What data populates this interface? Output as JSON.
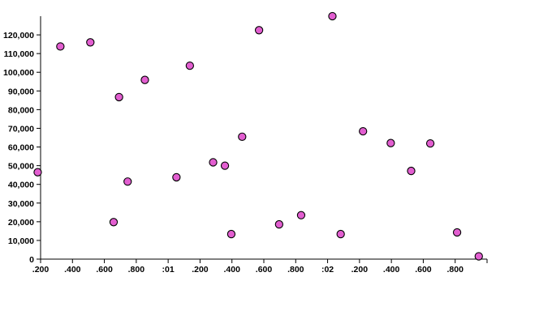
{
  "chart_data": {
    "type": "scatter",
    "title": "",
    "xlabel": "",
    "ylabel": "",
    "x_ticks": [
      ".200",
      ".400",
      ".600",
      ".800",
      ":01",
      ".200",
      ".400",
      ".600",
      ".800",
      ":02",
      ".200",
      ".400",
      ".600",
      ".800",
      ""
    ],
    "y_ticks": [
      "0",
      "10,000",
      "20,000",
      "30,000",
      "40,000",
      "50,000",
      "60,000",
      "70,000",
      "80,000",
      "90,000",
      "100,000",
      "110,000",
      "120,000"
    ],
    "xlim": [
      0,
      14
    ],
    "ylim": [
      0,
      130000
    ],
    "grid": false,
    "point_color": "#e25ed0",
    "points": [
      {
        "x": -0.09,
        "y": 46500
      },
      {
        "x": 0.62,
        "y": 113800
      },
      {
        "x": 1.56,
        "y": 116000
      },
      {
        "x": 2.29,
        "y": 19800
      },
      {
        "x": 2.46,
        "y": 86700
      },
      {
        "x": 2.73,
        "y": 41500
      },
      {
        "x": 3.27,
        "y": 95900
      },
      {
        "x": 4.26,
        "y": 43800
      },
      {
        "x": 4.68,
        "y": 103500
      },
      {
        "x": 5.41,
        "y": 51800
      },
      {
        "x": 5.78,
        "y": 50000
      },
      {
        "x": 5.98,
        "y": 13400
      },
      {
        "x": 6.32,
        "y": 65500
      },
      {
        "x": 6.85,
        "y": 122500
      },
      {
        "x": 7.48,
        "y": 18600
      },
      {
        "x": 8.17,
        "y": 23500
      },
      {
        "x": 9.15,
        "y": 130000
      },
      {
        "x": 9.41,
        "y": 13400
      },
      {
        "x": 10.11,
        "y": 68400
      },
      {
        "x": 10.98,
        "y": 62100
      },
      {
        "x": 11.62,
        "y": 47200
      },
      {
        "x": 12.22,
        "y": 61900
      },
      {
        "x": 13.06,
        "y": 14300
      },
      {
        "x": 13.74,
        "y": 1500
      }
    ]
  }
}
